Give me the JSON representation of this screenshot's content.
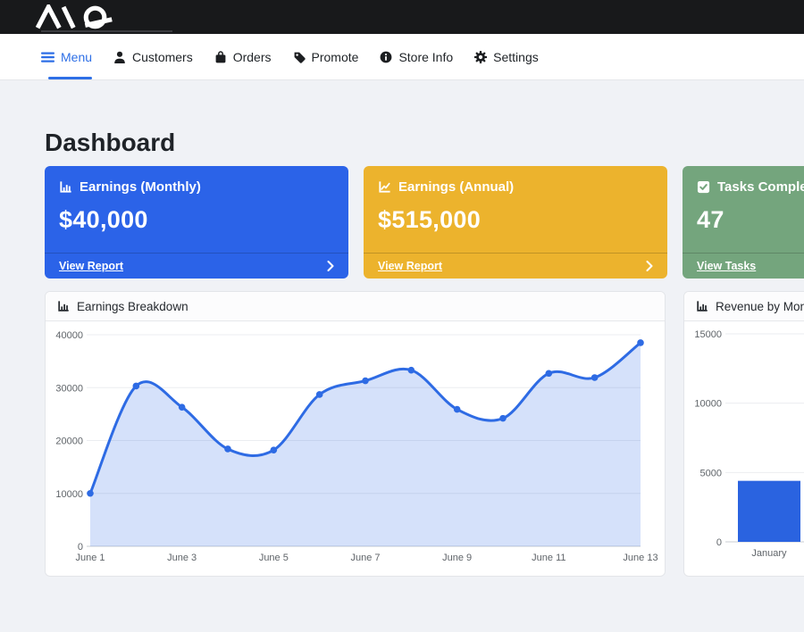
{
  "topbar": {
    "brand": "MQ"
  },
  "nav": {
    "items": [
      {
        "label": "Menu",
        "icon": "hamburger-icon",
        "active": true
      },
      {
        "label": "Customers",
        "icon": "person-icon",
        "active": false
      },
      {
        "label": "Orders",
        "icon": "shopping-bag-icon",
        "active": false
      },
      {
        "label": "Promote",
        "icon": "tag-icon",
        "active": false
      },
      {
        "label": "Store Info",
        "icon": "info-circle-icon",
        "active": false
      },
      {
        "label": "Settings",
        "icon": "gear-icon",
        "active": false
      }
    ]
  },
  "page": {
    "title": "Dashboard"
  },
  "stat_cards": [
    {
      "title": "Earnings (Monthly)",
      "value": "$40,000",
      "link": "View Report",
      "color": "#2b63e8",
      "icon": "chart-bar-icon"
    },
    {
      "title": "Earnings (Annual)",
      "value": "$515,000",
      "link": "View Report",
      "color": "#ecb32d",
      "icon": "chart-line-icon"
    },
    {
      "title": "Tasks Completed",
      "value": "47",
      "link": "View Tasks",
      "color": "#74a57d",
      "icon": "check-square-icon"
    }
  ],
  "chart_data": [
    {
      "type": "line",
      "title": "Earnings Breakdown",
      "x": [
        "June 1",
        "June 2",
        "June 3",
        "June 4",
        "June 5",
        "June 6",
        "June 7",
        "June 8",
        "June 9",
        "June 10",
        "June 11",
        "June 12",
        "June 13"
      ],
      "values": [
        10000,
        30300,
        26300,
        18400,
        18200,
        28700,
        31300,
        33300,
        25900,
        24200,
        32700,
        31900,
        38500
      ],
      "xticks_shown": [
        "June 1",
        "June 3",
        "June 5",
        "June 7",
        "June 9",
        "June 11",
        "June 13"
      ],
      "ylim": [
        0,
        40000
      ],
      "yticks": [
        0,
        10000,
        20000,
        30000,
        40000
      ],
      "xlabel": "",
      "ylabel": "",
      "grid": true,
      "legend": false,
      "line_color": "#2e6be4",
      "area_fill": "rgba(46,107,228,0.2)",
      "grid_color": "#ebedf0",
      "axis_color": "#c9cdd3",
      "tick_color": "#5f6469"
    },
    {
      "type": "bar",
      "title": "Revenue by Month",
      "categories": [
        "January"
      ],
      "values": [
        4400
      ],
      "ylim": [
        0,
        15000
      ],
      "yticks": [
        0,
        5000,
        10000,
        15000
      ],
      "xlabel": "",
      "ylabel": "",
      "grid": true,
      "legend": false,
      "bar_color": "#2a63e0",
      "grid_color": "#ebedf0",
      "axis_color": "#c9cdd3",
      "tick_color": "#5f6469"
    }
  ]
}
